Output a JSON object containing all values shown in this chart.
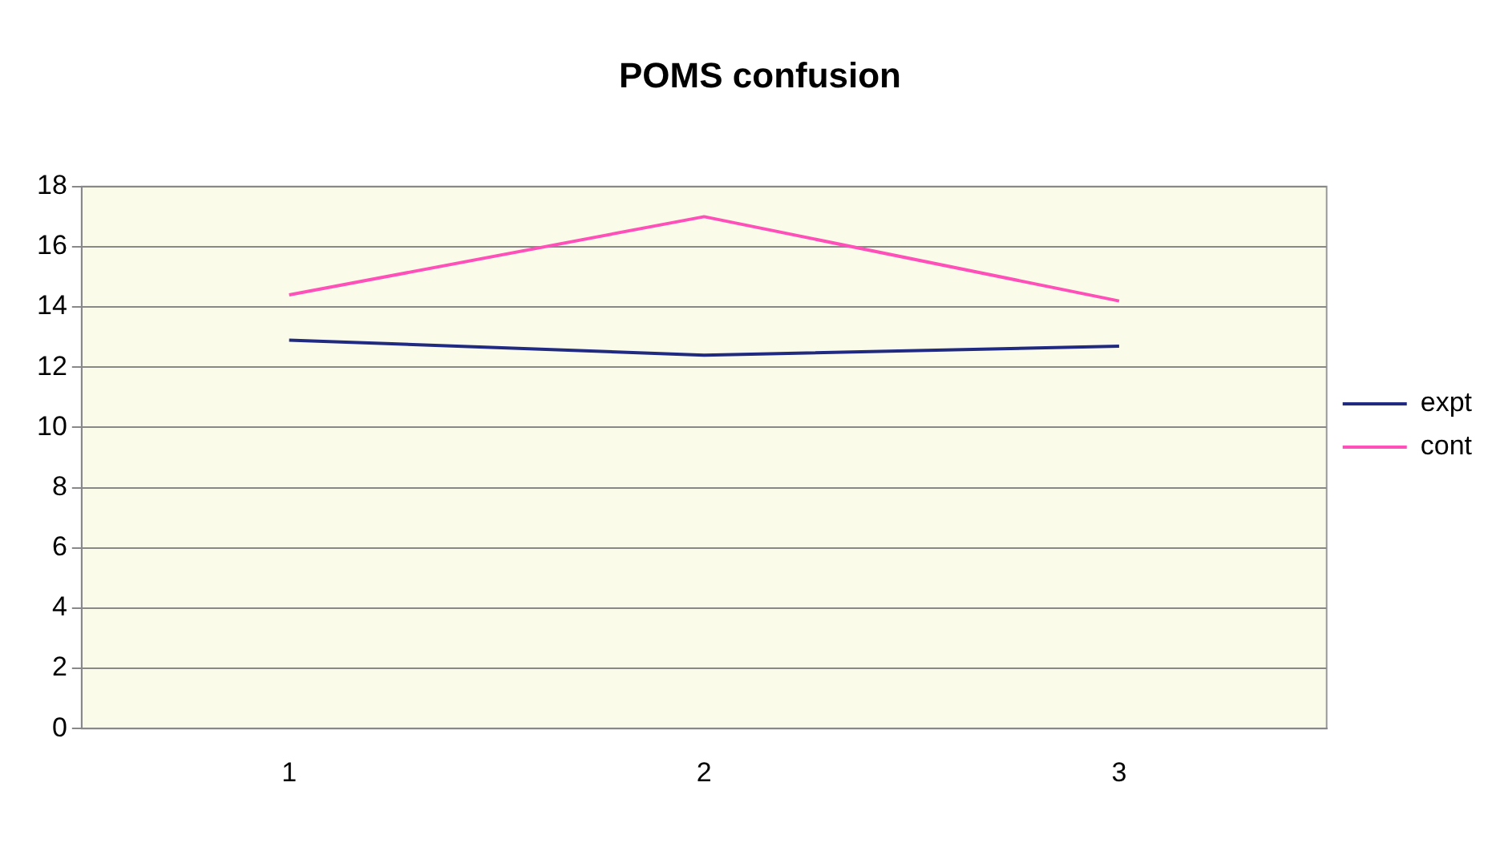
{
  "chart_data": {
    "type": "line",
    "title": "POMS confusion",
    "categories": [
      "1",
      "2",
      "3"
    ],
    "series": [
      {
        "name": "expt",
        "color": "#1f2a80",
        "values": [
          12.9,
          12.4,
          12.7
        ]
      },
      {
        "name": "cont",
        "color": "#ff4fb8",
        "values": [
          14.4,
          17.0,
          14.2
        ]
      }
    ],
    "ylim": [
      0,
      18
    ],
    "yticks": [
      0,
      2,
      4,
      6,
      8,
      10,
      12,
      14,
      16,
      18
    ],
    "grid": "y",
    "legend": "right",
    "marker": "none"
  }
}
